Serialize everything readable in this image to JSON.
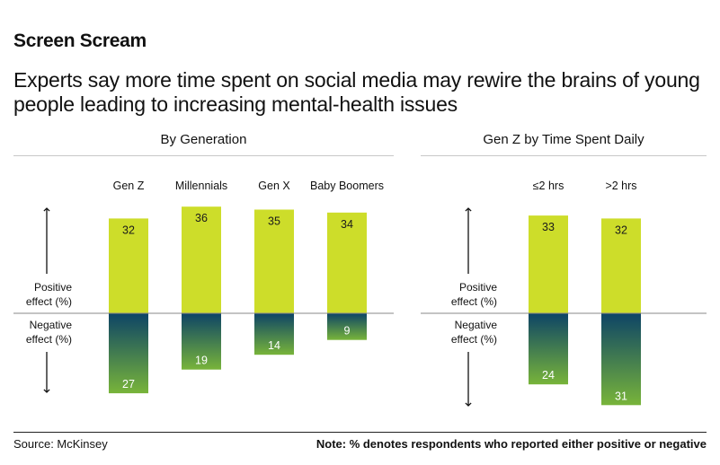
{
  "header": {
    "title": "Screen Scream",
    "subtitle": "Experts say more time spent on social media may rewire the brains of young people leading to increasing mental-health issues"
  },
  "footer": {
    "source": "Source: McKinsey",
    "note": "Note: % denotes respondents who reported either positive or negative"
  },
  "axis_labels": {
    "positive": "Positive effect (%)",
    "negative": "Negative effect (%)"
  },
  "colors": {
    "positive": "#cddd2a",
    "negative_top": "#0d4466",
    "negative_bottom": "#78b43a",
    "rule": "#c8c8c8"
  },
  "chart_data": [
    {
      "type": "bar",
      "title": "By Generation",
      "categories": [
        "Gen Z",
        "Millennials",
        "Gen X",
        "Baby Boomers"
      ],
      "series": [
        {
          "name": "Positive effect (%)",
          "values": [
            32,
            36,
            35,
            34
          ]
        },
        {
          "name": "Negative effect (%)",
          "values": [
            27,
            19,
            14,
            9
          ]
        }
      ],
      "ylabel": "Positive effect (%) / Negative effect (%)",
      "ylim": [
        -34,
        41
      ]
    },
    {
      "type": "bar",
      "title": "Gen Z by Time Spent Daily",
      "categories": [
        "≤2 hrs",
        ">2 hrs"
      ],
      "series": [
        {
          "name": "Positive effect (%)",
          "values": [
            33,
            32
          ]
        },
        {
          "name": "Negative effect (%)",
          "values": [
            24,
            31
          ]
        }
      ],
      "ylabel": "Positive effect (%) / Negative effect (%)",
      "ylim": [
        -34,
        41
      ]
    }
  ]
}
